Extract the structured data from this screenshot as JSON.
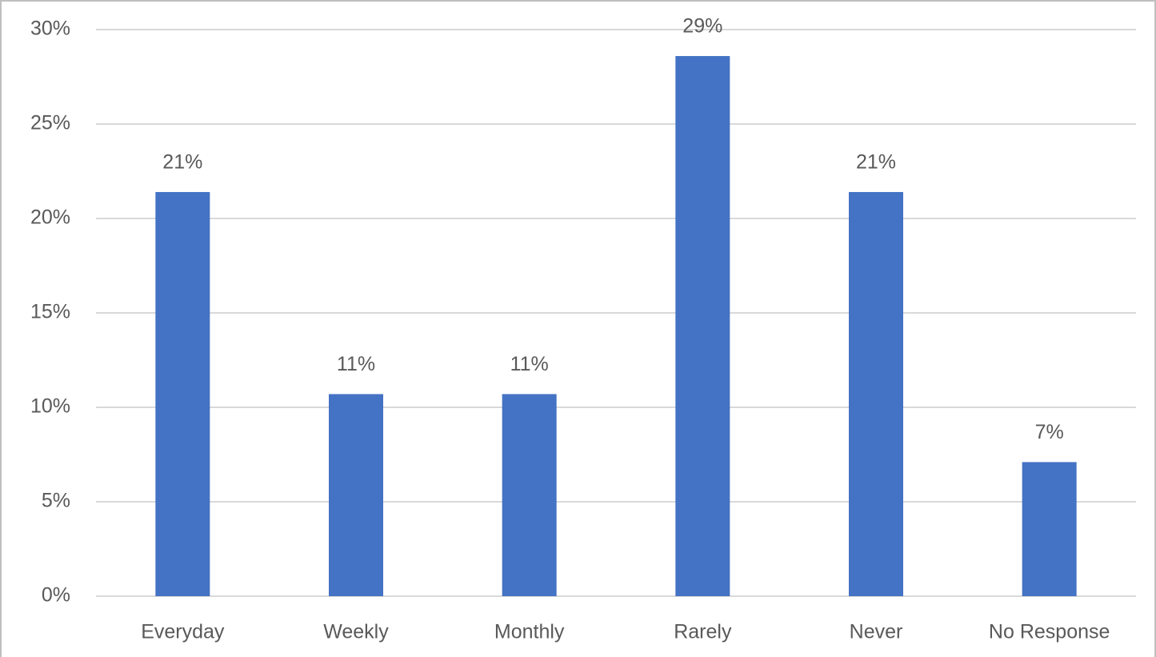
{
  "chart_data": {
    "type": "bar",
    "categories": [
      "Everyday",
      "Weekly",
      "Monthly",
      "Rarely",
      "Never",
      "No Response"
    ],
    "values": [
      21.4,
      10.7,
      10.7,
      28.6,
      21.4,
      7.1
    ],
    "value_labels": [
      "21%",
      "11%",
      "11%",
      "29%",
      "21%",
      "7%"
    ],
    "color": "#4472c4",
    "ylim": [
      0,
      30
    ],
    "yticks": [
      {
        "value": 0,
        "label": "0%"
      },
      {
        "value": 5,
        "label": "5%"
      },
      {
        "value": 10,
        "label": "10%"
      },
      {
        "value": 15,
        "label": "15%"
      },
      {
        "value": 20,
        "label": "20%"
      },
      {
        "value": 25,
        "label": "25%"
      },
      {
        "value": 30,
        "label": "30%"
      }
    ],
    "grid": true
  }
}
